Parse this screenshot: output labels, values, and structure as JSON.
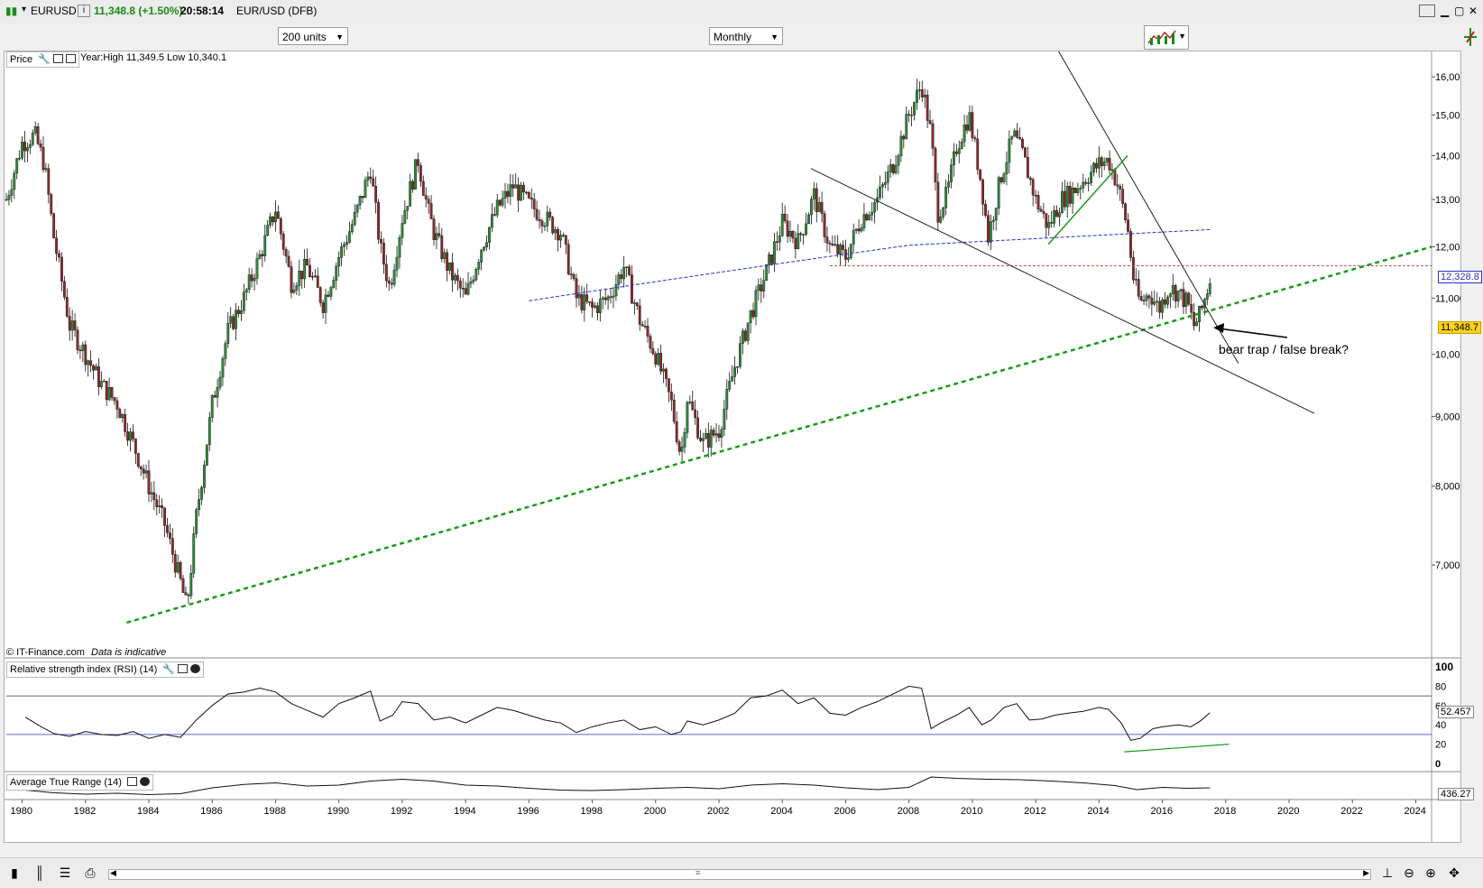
{
  "header": {
    "symbol": "EURUSD",
    "price_change": "11,348.8 (+1.50%)",
    "time": "20:58:14",
    "instrument": "EUR/USD (DFB)"
  },
  "toolbar": {
    "units_select": "200 units",
    "interval_select": "Monthly"
  },
  "price_panel": {
    "label": "Price",
    "info": "Year:High 11,349.5 Low 10,340.1",
    "watermark": "© IT-Finance.com",
    "watermark_note": "Data is indicative",
    "annotation": "bear trap / false break?",
    "last_price_tag": "11,348.7",
    "ma_tag": "12,328.8"
  },
  "rsi_panel": {
    "label": "Relative strength index (RSI) (14)",
    "value_tag": "52.457"
  },
  "atr_panel": {
    "label": "Average True Range (14)",
    "value_tag": "436.27"
  },
  "colors": {
    "up_candle": "#2e8b3a",
    "down_candle": "#8b2a2a",
    "trend_green": "#1a9a1a",
    "ma_blue": "#3030c8",
    "resistance_red": "#c04040",
    "last_price_bg": "#ffd21a"
  },
  "chart_data": [
    {
      "type": "candlestick",
      "title": "",
      "ylim": [
        6000,
        16500
      ],
      "yscale": "log",
      "yticks": [
        "16,000",
        "15,000",
        "14,000",
        "13,000",
        "12,000",
        "11,000",
        "10,000",
        "9,000",
        "8,000",
        "7,000"
      ],
      "xticks": [
        "1980",
        "1982",
        "1984",
        "1986",
        "1988",
        "1990",
        "1992",
        "1994",
        "1996",
        "1998",
        "2000",
        "2002",
        "2004",
        "2006",
        "2008",
        "2010",
        "2012",
        "2014",
        "2016",
        "2018",
        "2020",
        "2022",
        "2024"
      ],
      "xlim": [
        1979.5,
        2024.5
      ],
      "series": [
        {
          "points": [
            [
              1979.5,
              13000
            ],
            [
              1980.0,
              14300
            ],
            [
              1980.4,
              14500
            ],
            [
              1980.7,
              13800
            ],
            [
              1981.0,
              12200
            ],
            [
              1981.5,
              10500
            ],
            [
              1982.0,
              10000
            ],
            [
              1982.5,
              9500
            ],
            [
              1983.0,
              9200
            ],
            [
              1983.5,
              8600
            ],
            [
              1984.0,
              8000
            ],
            [
              1984.5,
              7500
            ],
            [
              1985.0,
              6800
            ],
            [
              1985.2,
              6500
            ],
            [
              1985.5,
              7600
            ],
            [
              1986.0,
              9200
            ],
            [
              1986.5,
              10400
            ],
            [
              1987.0,
              11000
            ],
            [
              1987.5,
              11800
            ],
            [
              1988.0,
              12800
            ],
            [
              1988.5,
              11300
            ],
            [
              1989.0,
              11600
            ],
            [
              1989.5,
              10900
            ],
            [
              1990.0,
              11800
            ],
            [
              1990.5,
              12600
            ],
            [
              1991.0,
              13700
            ],
            [
              1991.3,
              12000
            ],
            [
              1991.6,
              11200
            ],
            [
              1992.0,
              12600
            ],
            [
              1992.5,
              13900
            ],
            [
              1992.8,
              12800
            ],
            [
              1993.0,
              12300
            ],
            [
              1993.5,
              11500
            ],
            [
              1994.0,
              11000
            ],
            [
              1994.5,
              12000
            ],
            [
              1995.0,
              12800
            ],
            [
              1995.5,
              13300
            ],
            [
              1996.0,
              12900
            ],
            [
              1996.5,
              12600
            ],
            [
              1997.0,
              12300
            ],
            [
              1997.5,
              11000
            ],
            [
              1998.0,
              10800
            ],
            [
              1998.5,
              11000
            ],
            [
              1999.0,
              11600
            ],
            [
              1999.5,
              10600
            ],
            [
              2000.0,
              10000
            ],
            [
              2000.5,
              9200
            ],
            [
              2000.8,
              8400
            ],
            [
              2001.0,
              9300
            ],
            [
              2001.5,
              8600
            ],
            [
              2002.0,
              8800
            ],
            [
              2002.5,
              9800
            ],
            [
              2003.0,
              10700
            ],
            [
              2003.5,
              11500
            ],
            [
              2004.0,
              12500
            ],
            [
              2004.5,
              12100
            ],
            [
              2005.0,
              13100
            ],
            [
              2005.5,
              12000
            ],
            [
              2006.0,
              11800
            ],
            [
              2006.5,
              12600
            ],
            [
              2007.0,
              13000
            ],
            [
              2007.5,
              13800
            ],
            [
              2008.0,
              15000
            ],
            [
              2008.4,
              15800
            ],
            [
              2008.7,
              14500
            ],
            [
              2008.9,
              12700
            ],
            [
              2009.2,
              13100
            ],
            [
              2009.5,
              14200
            ],
            [
              2009.9,
              15000
            ],
            [
              2010.3,
              13300
            ],
            [
              2010.5,
              12200
            ],
            [
              2010.9,
              13500
            ],
            [
              2011.3,
              14500
            ],
            [
              2011.6,
              14000
            ],
            [
              2012.0,
              13000
            ],
            [
              2012.4,
              12400
            ],
            [
              2012.8,
              13000
            ],
            [
              2013.2,
              13200
            ],
            [
              2013.6,
              13500
            ],
            [
              2014.0,
              13800
            ],
            [
              2014.3,
              13900
            ],
            [
              2014.6,
              13300
            ],
            [
              2014.9,
              12400
            ],
            [
              2015.1,
              11300
            ],
            [
              2015.3,
              10900
            ],
            [
              2015.6,
              11100
            ],
            [
              2015.9,
              10800
            ],
            [
              2016.2,
              11200
            ],
            [
              2016.5,
              11100
            ],
            [
              2016.8,
              10900
            ],
            [
              2017.0,
              10500
            ],
            [
              2017.2,
              10700
            ],
            [
              2017.5,
              11349
            ]
          ]
        }
      ]
    },
    {
      "type": "line",
      "title": "",
      "ylim": [
        0,
        100
      ],
      "yticks": [
        "100",
        "80",
        "60",
        "40",
        "20",
        "0"
      ],
      "reference_lines": [
        70,
        30
      ],
      "series": [
        {
          "points": [
            [
              1980.1,
              48
            ],
            [
              1980.6,
              38
            ],
            [
              1981.0,
              31
            ],
            [
              1981.5,
              28
            ],
            [
              1982.0,
              33
            ],
            [
              1982.5,
              30
            ],
            [
              1983.0,
              29
            ],
            [
              1983.5,
              33
            ],
            [
              1984.0,
              26
            ],
            [
              1984.5,
              30
            ],
            [
              1985.0,
              27
            ],
            [
              1985.5,
              45
            ],
            [
              1986.0,
              60
            ],
            [
              1986.5,
              72
            ],
            [
              1987.0,
              74
            ],
            [
              1987.5,
              78
            ],
            [
              1988.0,
              74
            ],
            [
              1988.5,
              62
            ],
            [
              1989.0,
              55
            ],
            [
              1989.5,
              48
            ],
            [
              1990.0,
              62
            ],
            [
              1990.5,
              68
            ],
            [
              1991.0,
              75
            ],
            [
              1991.3,
              44
            ],
            [
              1991.7,
              50
            ],
            [
              1992.0,
              64
            ],
            [
              1992.5,
              62
            ],
            [
              1993.0,
              45
            ],
            [
              1993.5,
              48
            ],
            [
              1994.0,
              42
            ],
            [
              1994.5,
              50
            ],
            [
              1995.0,
              58
            ],
            [
              1995.5,
              55
            ],
            [
              1996.0,
              50
            ],
            [
              1996.5,
              45
            ],
            [
              1997.0,
              42
            ],
            [
              1997.5,
              32
            ],
            [
              1998.0,
              38
            ],
            [
              1998.5,
              42
            ],
            [
              1999.0,
              45
            ],
            [
              1999.5,
              35
            ],
            [
              2000.0,
              38
            ],
            [
              2000.5,
              30
            ],
            [
              2000.8,
              33
            ],
            [
              2001.0,
              44
            ],
            [
              2001.5,
              40
            ],
            [
              2002.0,
              45
            ],
            [
              2002.5,
              52
            ],
            [
              2003.0,
              68
            ],
            [
              2003.5,
              70
            ],
            [
              2004.0,
              76
            ],
            [
              2004.5,
              62
            ],
            [
              2005.0,
              68
            ],
            [
              2005.5,
              52
            ],
            [
              2006.0,
              50
            ],
            [
              2006.5,
              58
            ],
            [
              2007.0,
              64
            ],
            [
              2007.5,
              72
            ],
            [
              2008.0,
              80
            ],
            [
              2008.4,
              78
            ],
            [
              2008.7,
              36
            ],
            [
              2009.0,
              42
            ],
            [
              2009.5,
              50
            ],
            [
              2009.9,
              58
            ],
            [
              2010.3,
              40
            ],
            [
              2010.6,
              45
            ],
            [
              2011.0,
              58
            ],
            [
              2011.4,
              62
            ],
            [
              2011.8,
              45
            ],
            [
              2012.2,
              46
            ],
            [
              2012.6,
              50
            ],
            [
              2013.0,
              52
            ],
            [
              2013.5,
              54
            ],
            [
              2014.0,
              58
            ],
            [
              2014.3,
              56
            ],
            [
              2014.7,
              42
            ],
            [
              2015.0,
              24
            ],
            [
              2015.3,
              26
            ],
            [
              2015.7,
              36
            ],
            [
              2016.0,
              38
            ],
            [
              2016.5,
              40
            ],
            [
              2016.9,
              38
            ],
            [
              2017.2,
              44
            ],
            [
              2017.5,
              52.457
            ]
          ]
        }
      ]
    },
    {
      "type": "line",
      "title": "",
      "series": [
        {
          "points": [
            [
              1980.1,
              70
            ],
            [
              1981.0,
              82
            ],
            [
              1982.0,
              88
            ],
            [
              1983.0,
              84
            ],
            [
              1984.0,
              90
            ],
            [
              1985.0,
              86
            ],
            [
              1986.0,
              60
            ],
            [
              1987.0,
              45
            ],
            [
              1988.0,
              38
            ],
            [
              1989.0,
              52
            ],
            [
              1990.0,
              48
            ],
            [
              1991.0,
              30
            ],
            [
              1992.0,
              22
            ],
            [
              1993.0,
              30
            ],
            [
              1994.0,
              48
            ],
            [
              1995.0,
              52
            ],
            [
              1996.0,
              62
            ],
            [
              1997.0,
              70
            ],
            [
              1998.0,
              72
            ],
            [
              1999.0,
              68
            ],
            [
              2000.0,
              62
            ],
            [
              2001.0,
              58
            ],
            [
              2002.0,
              64
            ],
            [
              2003.0,
              48
            ],
            [
              2004.0,
              42
            ],
            [
              2005.0,
              48
            ],
            [
              2006.0,
              60
            ],
            [
              2007.0,
              68
            ],
            [
              2008.0,
              58
            ],
            [
              2008.7,
              12
            ],
            [
              2009.5,
              18
            ],
            [
              2010.5,
              22
            ],
            [
              2011.5,
              24
            ],
            [
              2012.5,
              30
            ],
            [
              2013.5,
              38
            ],
            [
              2014.5,
              50
            ],
            [
              2015.2,
              68
            ],
            [
              2016.0,
              58
            ],
            [
              2016.8,
              62
            ],
            [
              2017.5,
              60
            ]
          ]
        }
      ]
    }
  ]
}
